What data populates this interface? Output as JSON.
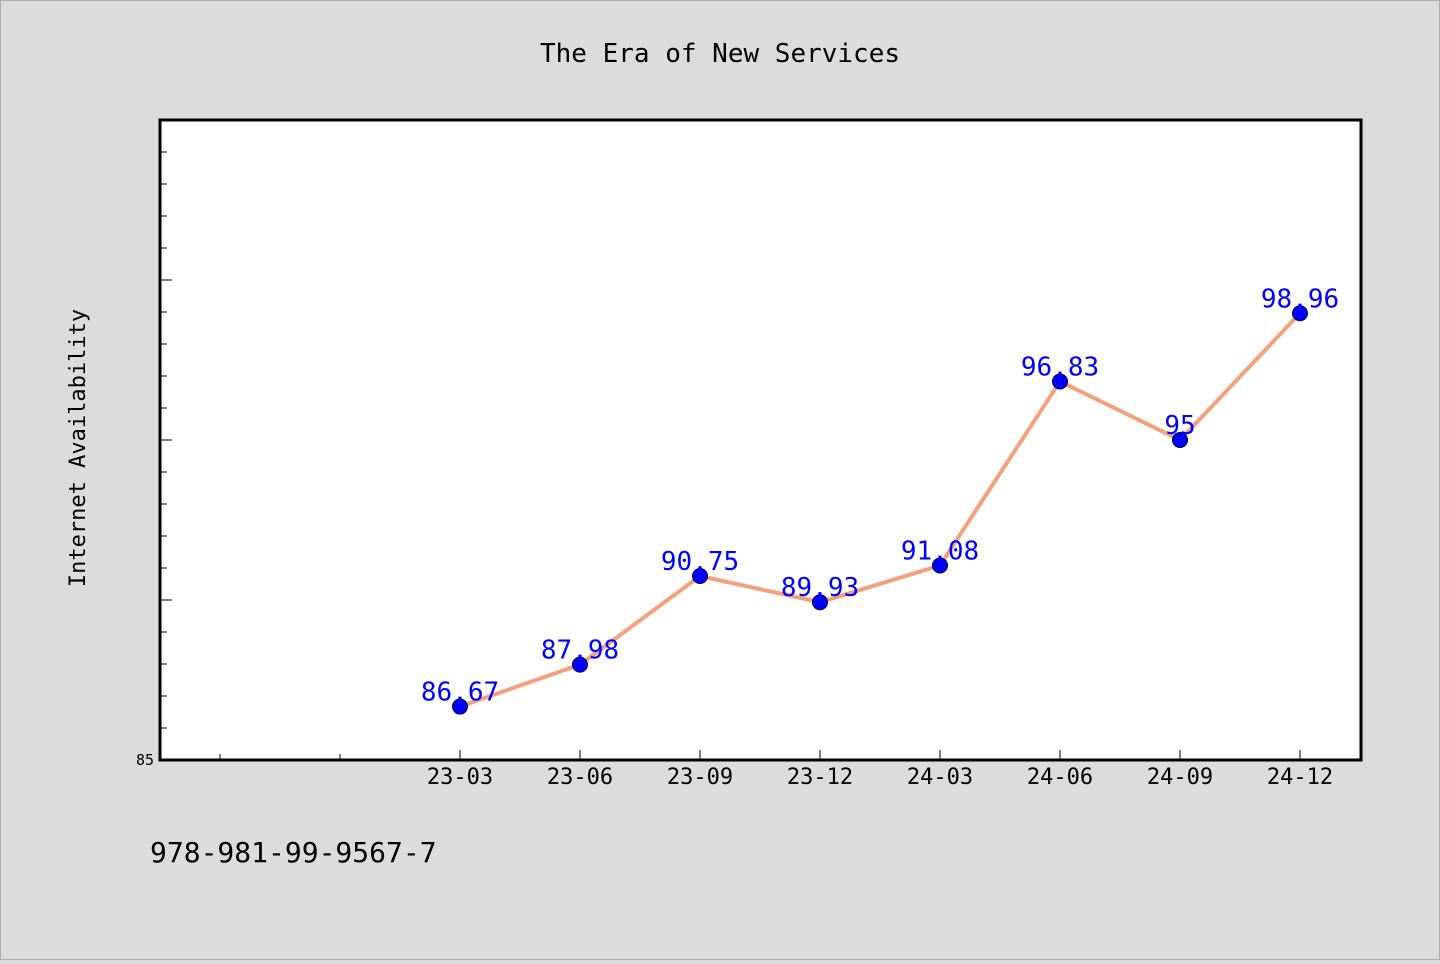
{
  "chart_data": {
    "type": "line",
    "title": "The Era of New Services",
    "xlabel": "",
    "ylabel": "Internet Availability",
    "categories": [
      "23-03",
      "23-06",
      "23-09",
      "23-12",
      "24-03",
      "24-06",
      "24-09",
      "24-12"
    ],
    "series": [
      {
        "values": [
          86.67,
          87.98,
          90.75,
          89.93,
          91.08,
          96.83,
          95,
          98.96
        ]
      }
    ],
    "data_labels": [
      "86.67",
      "87.98",
      "90.75",
      "89.93",
      "91.08",
      "96.83",
      "95",
      "98.96"
    ],
    "ylim": [
      85,
      105
    ],
    "y_tick_labels": [
      "85"
    ],
    "grid": false,
    "legend": "none",
    "footer_text": "978-981-99-9567-7",
    "colors": {
      "line": "#f4a07c",
      "marker": "#0000ff",
      "label": "#0000ff",
      "background": "#dcdcdc",
      "plot_background": "#ffffff"
    }
  }
}
